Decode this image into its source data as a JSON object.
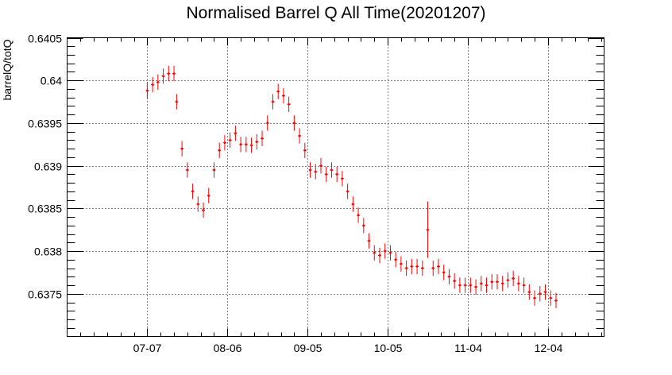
{
  "chart_data": {
    "type": "scatter",
    "title": "Normalised Barrel Q All Time(20201207)",
    "xlabel": "",
    "ylabel": "barrelQ/totQ",
    "x_axis_type": "date",
    "xlim": [
      "2020-06-07",
      "2020-12-25"
    ],
    "ylim": [
      0.637,
      0.6405
    ],
    "x_tick_labels": [
      "07-07",
      "08-06",
      "09-05",
      "10-05",
      "11-04",
      "12-04"
    ],
    "x_tick_dates": [
      "2020-07-07",
      "2020-08-06",
      "2020-09-05",
      "2020-10-05",
      "2020-11-04",
      "2020-12-04"
    ],
    "y_tick_labels": [
      "0.6375",
      "0.638",
      "0.6385",
      "0.639",
      "0.6395",
      "0.64",
      "0.6405"
    ],
    "y_tick_values": [
      0.6375,
      0.638,
      0.6385,
      0.639,
      0.6395,
      0.64,
      0.6405
    ],
    "grid": true,
    "legend": "none",
    "marker_color": "#ff0000",
    "series": [
      {
        "x": [
          "2020-07-07",
          "2020-07-09",
          "2020-07-11",
          "2020-07-13",
          "2020-07-15",
          "2020-07-17",
          "2020-07-18",
          "2020-07-20",
          "2020-07-22",
          "2020-07-24",
          "2020-07-26",
          "2020-07-28",
          "2020-07-30",
          "2020-08-01",
          "2020-08-03",
          "2020-08-05",
          "2020-08-07",
          "2020-08-09",
          "2020-08-11",
          "2020-08-13",
          "2020-08-15",
          "2020-08-17",
          "2020-08-19",
          "2020-08-21",
          "2020-08-23",
          "2020-08-25",
          "2020-08-27",
          "2020-08-29",
          "2020-08-31",
          "2020-09-02",
          "2020-09-04",
          "2020-09-06",
          "2020-09-08",
          "2020-09-10",
          "2020-09-12",
          "2020-09-14",
          "2020-09-16",
          "2020-09-18",
          "2020-09-20",
          "2020-09-22",
          "2020-09-24",
          "2020-09-26",
          "2020-09-28",
          "2020-09-30",
          "2020-10-02",
          "2020-10-04",
          "2020-10-06",
          "2020-10-08",
          "2020-10-10",
          "2020-10-12",
          "2020-10-14",
          "2020-10-16",
          "2020-10-18",
          "2020-10-20",
          "2020-10-22",
          "2020-10-24",
          "2020-10-26",
          "2020-10-28",
          "2020-10-30",
          "2020-11-01",
          "2020-11-03",
          "2020-11-05",
          "2020-11-07",
          "2020-11-09",
          "2020-11-11",
          "2020-11-13",
          "2020-11-15",
          "2020-11-17",
          "2020-11-19",
          "2020-11-21",
          "2020-11-23",
          "2020-11-25",
          "2020-11-27",
          "2020-11-29",
          "2020-12-01",
          "2020-12-03",
          "2020-12-05",
          "2020-12-07"
        ],
        "y": [
          0.63988,
          0.63995,
          0.63998,
          0.64005,
          0.64008,
          0.64008,
          0.63975,
          0.6392,
          0.63895,
          0.6387,
          0.63855,
          0.63848,
          0.63865,
          0.63895,
          0.63918,
          0.63927,
          0.6393,
          0.63938,
          0.63925,
          0.63925,
          0.63924,
          0.63928,
          0.63932,
          0.6395,
          0.63975,
          0.63987,
          0.63982,
          0.63972,
          0.6395,
          0.63935,
          0.63918,
          0.63895,
          0.63893,
          0.639,
          0.6389,
          0.63895,
          0.6389,
          0.63885,
          0.6387,
          0.63855,
          0.63842,
          0.6383,
          0.63812,
          0.63798,
          0.63795,
          0.638,
          0.63798,
          0.6379,
          0.63785,
          0.6378,
          0.63782,
          0.63782,
          0.6378,
          0.63825,
          0.6378,
          0.63782,
          0.63775,
          0.6377,
          0.63765,
          0.6376,
          0.6376,
          0.6376,
          0.63758,
          0.63762,
          0.6376,
          0.63764,
          0.63764,
          0.63762,
          0.63766,
          0.63768,
          0.63762,
          0.6376,
          0.63752,
          0.63745,
          0.6375,
          0.63752,
          0.63745,
          0.63742
        ],
        "y_err": [
          9e-05,
          9e-05,
          9e-05,
          9e-05,
          9e-05,
          9e-05,
          9e-05,
          9e-05,
          9e-05,
          9e-05,
          9e-05,
          9e-05,
          9e-05,
          9e-05,
          9e-05,
          9e-05,
          9e-05,
          9e-05,
          9e-05,
          9e-05,
          9e-05,
          9e-05,
          9e-05,
          9e-05,
          9e-05,
          9e-05,
          9e-05,
          9e-05,
          9e-05,
          9e-05,
          9e-05,
          9e-05,
          9e-05,
          9e-05,
          9e-05,
          9e-05,
          9e-05,
          9e-05,
          9e-05,
          9e-05,
          9e-05,
          9e-05,
          9e-05,
          9e-05,
          9e-05,
          9e-05,
          9e-05,
          9e-05,
          9e-05,
          9e-05,
          9e-05,
          9e-05,
          9e-05,
          0.00033,
          9e-05,
          9e-05,
          9e-05,
          9e-05,
          9e-05,
          9e-05,
          9e-05,
          9e-05,
          9e-05,
          9e-05,
          9e-05,
          9e-05,
          9e-05,
          9e-05,
          9e-05,
          9e-05,
          9e-05,
          9e-05,
          9e-05,
          9e-05,
          9e-05,
          9e-05,
          9e-05,
          9e-05
        ]
      }
    ]
  }
}
